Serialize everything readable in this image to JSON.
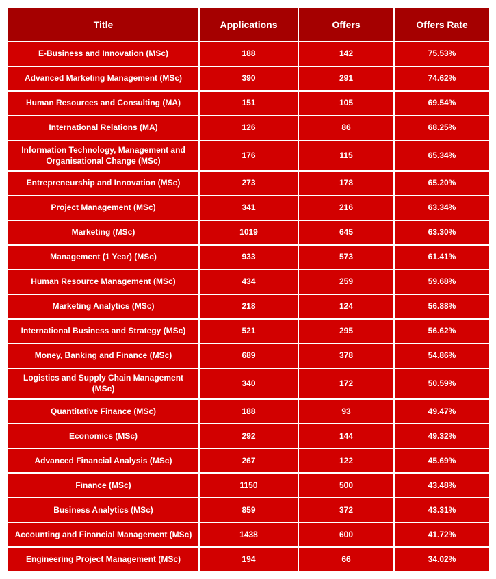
{
  "table": {
    "header_bg": "#a50000",
    "row_bg": "#d20000",
    "text_color": "#ffffff",
    "border_color": "#ffffff",
    "columns": [
      "Title",
      "Applications",
      "Offers",
      "Offers Rate"
    ],
    "rows": [
      [
        "E-Business and Innovation (MSc)",
        "188",
        "142",
        "75.53%"
      ],
      [
        "Advanced Marketing Management (MSc)",
        "390",
        "291",
        "74.62%"
      ],
      [
        "Human Resources and Consulting (MA)",
        "151",
        "105",
        "69.54%"
      ],
      [
        "International Relations (MA)",
        "126",
        "86",
        "68.25%"
      ],
      [
        "Information Technology, Management and Organisational Change (MSc)",
        "176",
        "115",
        "65.34%"
      ],
      [
        "Entrepreneurship and Innovation (MSc)",
        "273",
        "178",
        "65.20%"
      ],
      [
        "Project Management (MSc)",
        "341",
        "216",
        "63.34%"
      ],
      [
        "Marketing (MSc)",
        "1019",
        "645",
        "63.30%"
      ],
      [
        "Management (1 Year) (MSc)",
        "933",
        "573",
        "61.41%"
      ],
      [
        "Human Resource Management (MSc)",
        "434",
        "259",
        "59.68%"
      ],
      [
        "Marketing Analytics (MSc)",
        "218",
        "124",
        "56.88%"
      ],
      [
        "International Business and Strategy (MSc)",
        "521",
        "295",
        "56.62%"
      ],
      [
        "Money, Banking and Finance (MSc)",
        "689",
        "378",
        "54.86%"
      ],
      [
        "Logistics and Supply Chain Management (MSc)",
        "340",
        "172",
        "50.59%"
      ],
      [
        "Quantitative Finance (MSc)",
        "188",
        "93",
        "49.47%"
      ],
      [
        "Economics (MSc)",
        "292",
        "144",
        "49.32%"
      ],
      [
        "Advanced Financial Analysis (MSc)",
        "267",
        "122",
        "45.69%"
      ],
      [
        "Finance (MSc)",
        "1150",
        "500",
        "43.48%"
      ],
      [
        "Business Analytics (MSc)",
        "859",
        "372",
        "43.31%"
      ],
      [
        "Accounting and Financial Management (MSc)",
        "1438",
        "600",
        "41.72%"
      ],
      [
        "Engineering Project Management (MSc)",
        "194",
        "66",
        "34.02%"
      ]
    ]
  }
}
